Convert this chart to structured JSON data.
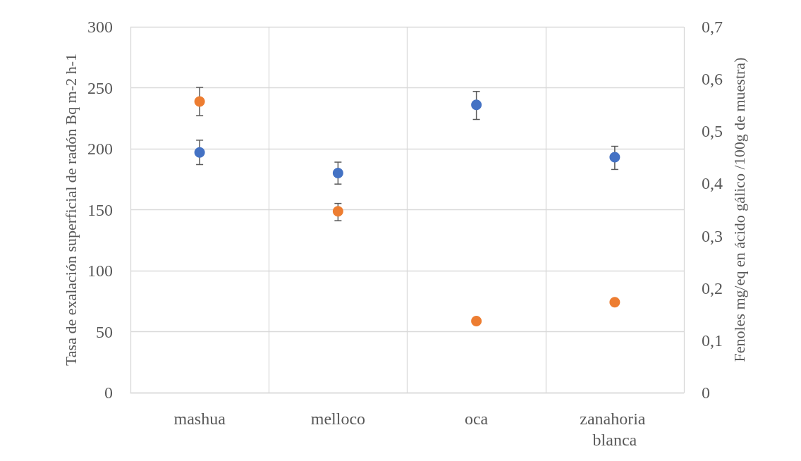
{
  "chart_data": {
    "type": "scatter",
    "categories": [
      "mashua",
      "melloco",
      "oca",
      "zanahoria blanca"
    ],
    "ylabel": "Tasa de exalación superficial de radón Bq m-2 h-1",
    "y2label": "Fenoles mg/eq en ácido gálico /100g de muestra)",
    "ylim": [
      0,
      300
    ],
    "yticks": [
      0,
      50,
      100,
      150,
      200,
      250,
      300
    ],
    "y2lim": [
      0,
      0.7
    ],
    "y2ticks": [
      {
        "value": 0,
        "label": "0"
      },
      {
        "value": 0.1,
        "label": "0,1"
      },
      {
        "value": 0.2,
        "label": "0,2"
      },
      {
        "value": 0.3,
        "label": "0,3"
      },
      {
        "value": 0.4,
        "label": "0,4"
      },
      {
        "value": 0.5,
        "label": "0,5"
      },
      {
        "value": 0.6,
        "label": "0,6"
      },
      {
        "value": 0.7,
        "label": "0,7"
      }
    ],
    "series": [
      {
        "color": "#4472c4",
        "values": [
          197,
          180,
          236,
          193
        ],
        "errors": [
          [
            187,
            207
          ],
          [
            171,
            189
          ],
          [
            224,
            247
          ],
          [
            183,
            202
          ]
        ]
      },
      {
        "color": "#ed7d31",
        "axis": "y2",
        "values": [
          0.557,
          0.347,
          0.137,
          0.173
        ],
        "errors": [
          [
            0.53,
            0.584
          ],
          [
            0.329,
            0.362
          ],
          null,
          null
        ]
      }
    ],
    "grid": true,
    "marker": "circle"
  }
}
